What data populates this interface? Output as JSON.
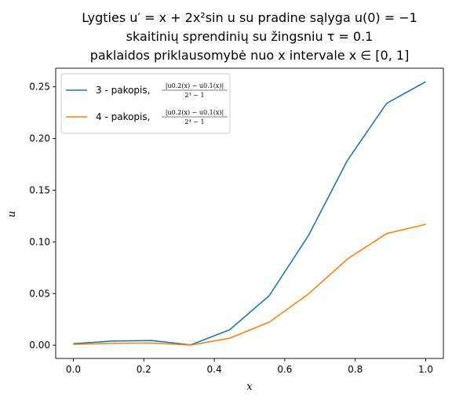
{
  "chart_data": {
    "type": "line",
    "title_lines": [
      "Lygties u′ = x + 2x²sin u su pradine sąlyga u(0) = −1",
      "skaitinių sprendinių su žingsniu τ = 0.1",
      "paklaidos priklausomybė nuo x intervale x ∈ [0, 1]"
    ],
    "xlabel": "x",
    "ylabel": "u",
    "xlim": [
      -0.05,
      1.05
    ],
    "ylim": [
      -0.0128,
      0.268
    ],
    "xticks": [
      0.0,
      0.2,
      0.4,
      0.6,
      0.8,
      1.0
    ],
    "xtick_labels": [
      "0.0",
      "0.2",
      "0.4",
      "0.6",
      "0.8",
      "1.0"
    ],
    "yticks": [
      0.0,
      0.05,
      0.1,
      0.15,
      0.2,
      0.25
    ],
    "ytick_labels": [
      "0.00",
      "0.05",
      "0.10",
      "0.15",
      "0.20",
      "0.25"
    ],
    "legend_position": "top-left",
    "x": [
      0.0,
      0.111,
      0.222,
      0.333,
      0.444,
      0.556,
      0.667,
      0.778,
      0.889,
      1.0
    ],
    "series": [
      {
        "name": "3 - pakopis,",
        "frac_num": "|u0.2(x) − u0.1(x)|",
        "frac_den": "2³ − 1",
        "color": "#1f77b4",
        "values": [
          0.0015,
          0.004,
          0.0045,
          0.0003,
          0.015,
          0.048,
          0.106,
          0.179,
          0.234,
          0.255
        ]
      },
      {
        "name": "4 - pakopis,",
        "frac_num": "|u0.2(x) − u0.1(x)|",
        "frac_den": "2⁴ − 1",
        "color": "#ff7f0e",
        "values": [
          0.0008,
          0.0018,
          0.0021,
          0.0001,
          0.0068,
          0.0223,
          0.0495,
          0.0835,
          0.108,
          0.117
        ]
      }
    ]
  }
}
